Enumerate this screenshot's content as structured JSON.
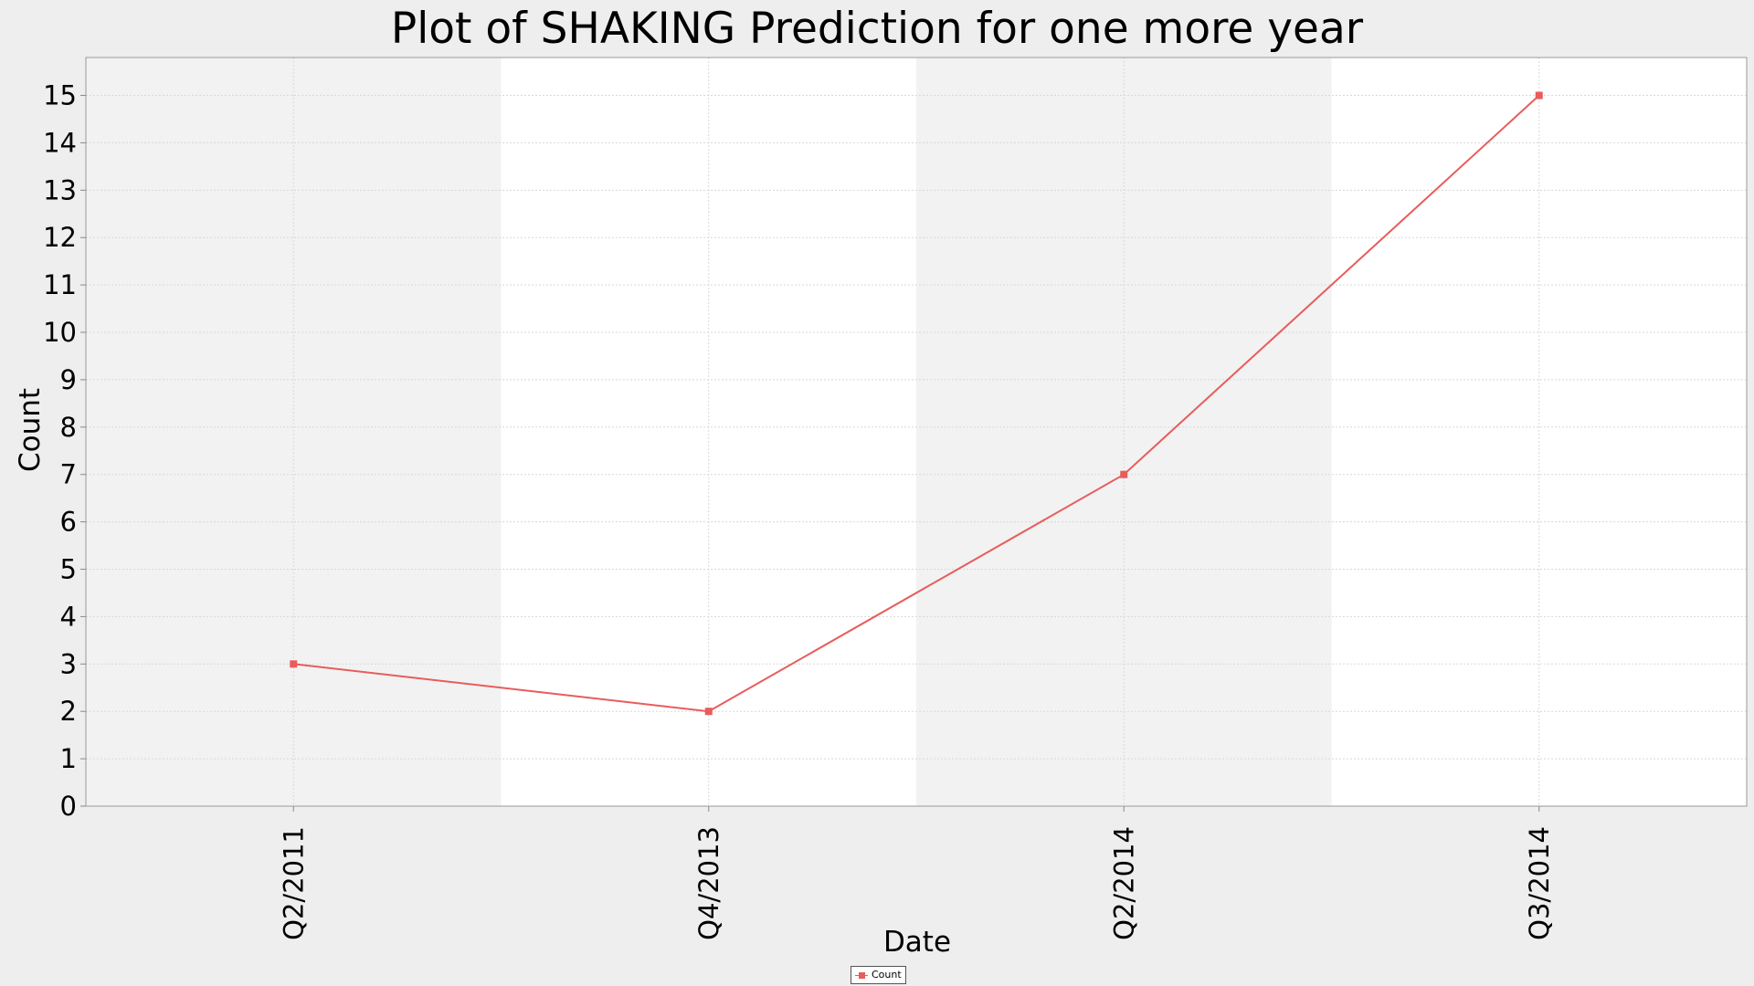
{
  "chart_data": {
    "type": "line",
    "title": "Plot of SHAKING Prediction for one more year",
    "xlabel": "Date",
    "ylabel": "Count",
    "categories": [
      "Q2/2011",
      "Q4/2013",
      "Q2/2014",
      "Q3/2014"
    ],
    "series": [
      {
        "name": "Count",
        "values": [
          3,
          2,
          7,
          15
        ],
        "color": "#e85c5c"
      }
    ],
    "ylim": [
      0,
      15.8
    ],
    "yticks": [
      "0",
      "1",
      "2",
      "3",
      "4",
      "5",
      "6",
      "7",
      "8",
      "9",
      "10",
      "11",
      "12",
      "13",
      "14",
      "15"
    ],
    "grid": true,
    "legend": "bottom-center",
    "band_colors": [
      "#f2f2f2",
      "#ffffff"
    ]
  }
}
